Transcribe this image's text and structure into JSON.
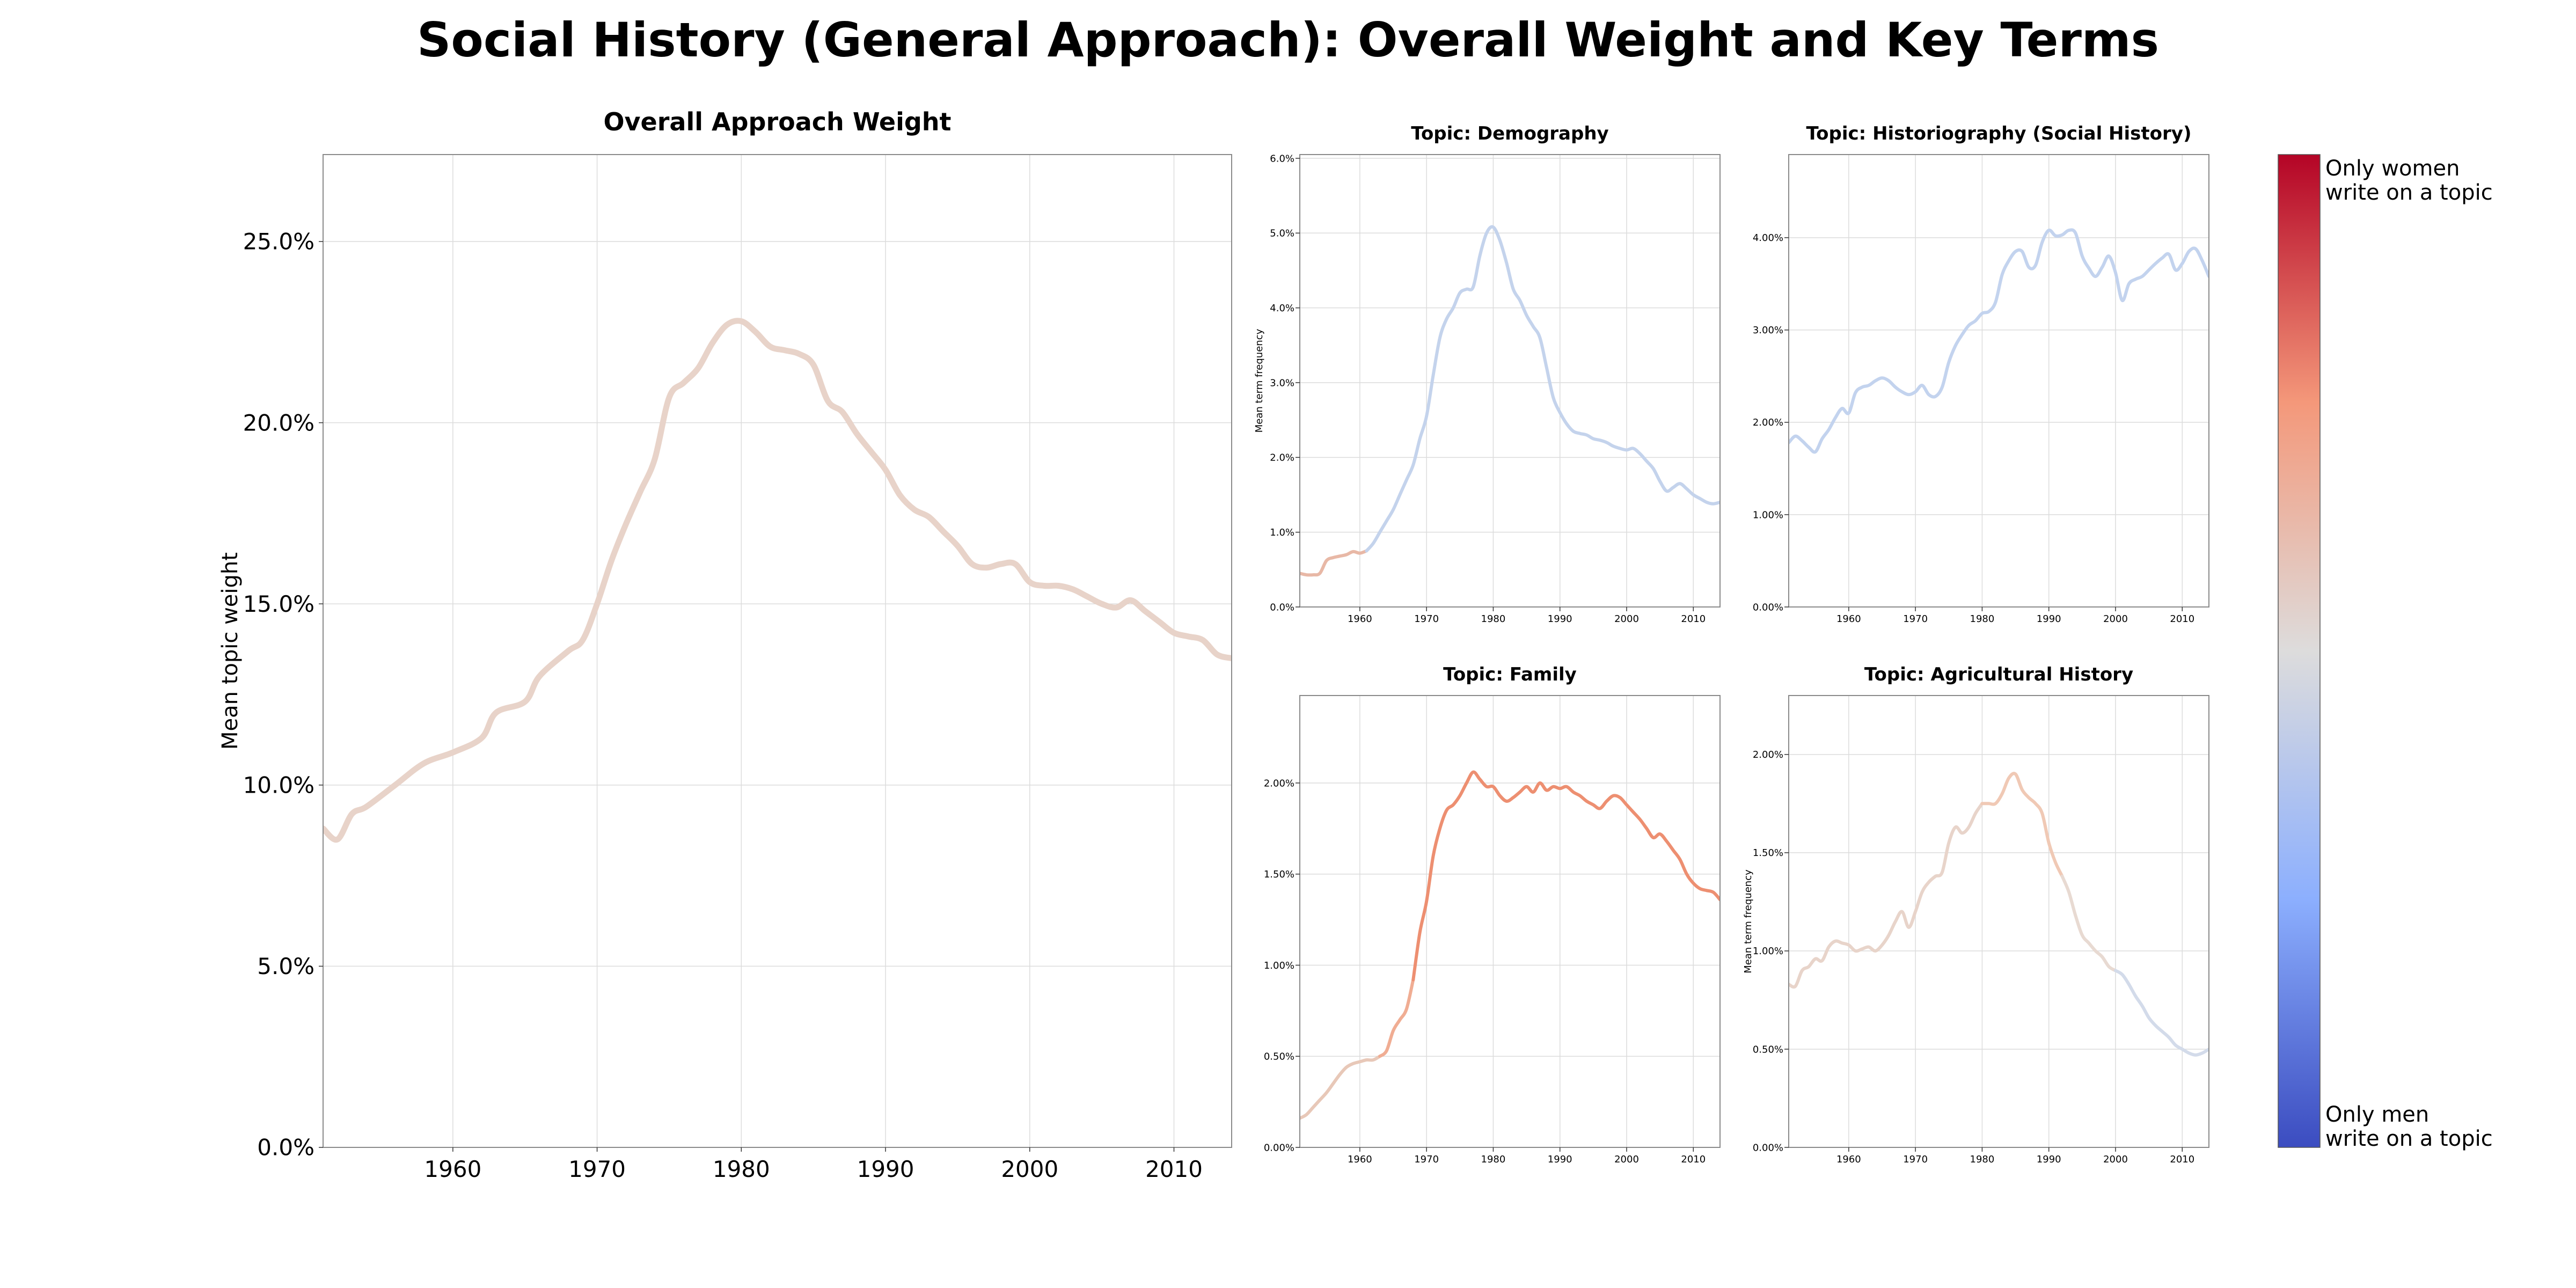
{
  "figure": {
    "title": "Social History (General Approach): Overall Weight and Key Terms",
    "colorbar": {
      "top_label_line1": "Only women",
      "top_label_line2": "write on a topic",
      "bottom_label_line1": "Only men",
      "bottom_label_line2": "write on a topic"
    }
  },
  "chart_data": [
    {
      "id": "main",
      "type": "line",
      "title": "Overall Approach Weight",
      "xlabel": "",
      "ylabel": "Mean topic weight",
      "xlim": [
        1951,
        2014
      ],
      "ylim": [
        0,
        0.274
      ],
      "xticks": [
        1960,
        1970,
        1980,
        1990,
        2000,
        2010
      ],
      "yticks": [
        0,
        0.05,
        0.1,
        0.15,
        0.2,
        0.25
      ],
      "ytick_labels": [
        "0.0%",
        "5.0%",
        "10.0%",
        "15.0%",
        "20.0%",
        "25.0%"
      ],
      "grid": true,
      "series": [
        {
          "color": "#e8d3c9",
          "x": [
            1951,
            1952,
            1953,
            1954,
            1956,
            1958,
            1960,
            1962,
            1963,
            1965,
            1966,
            1968,
            1969,
            1970,
            1971,
            1972,
            1973,
            1974,
            1975,
            1976,
            1977,
            1978,
            1979,
            1980,
            1981,
            1982,
            1983,
            1984,
            1985,
            1986,
            1987,
            1988,
            1989,
            1990,
            1991,
            1992,
            1993,
            1994,
            1995,
            1996,
            1997,
            1998,
            1999,
            2000,
            2001,
            2002,
            2003,
            2004,
            2005,
            2006,
            2007,
            2008,
            2009,
            2010,
            2011,
            2012,
            2013,
            2014
          ],
          "y": [
            0.088,
            0.085,
            0.092,
            0.094,
            0.1,
            0.106,
            0.109,
            0.113,
            0.12,
            0.123,
            0.13,
            0.137,
            0.14,
            0.15,
            0.162,
            0.172,
            0.181,
            0.19,
            0.207,
            0.211,
            0.215,
            0.222,
            0.227,
            0.228,
            0.225,
            0.221,
            0.22,
            0.219,
            0.216,
            0.206,
            0.203,
            0.197,
            0.192,
            0.187,
            0.18,
            0.176,
            0.174,
            0.17,
            0.166,
            0.161,
            0.16,
            0.161,
            0.161,
            0.156,
            0.155,
            0.155,
            0.154,
            0.152,
            0.15,
            0.149,
            0.151,
            0.148,
            0.145,
            0.142,
            0.141,
            0.14,
            0.136,
            0.135
          ]
        }
      ]
    },
    {
      "id": "demography",
      "type": "line",
      "title": "Topic: Demography",
      "xlabel": "",
      "ylabel": "Mean term frequency",
      "xlim": [
        1951,
        2014
      ],
      "ylim": [
        0,
        0.0605
      ],
      "xticks": [
        1960,
        1970,
        1980,
        1990,
        2000,
        2010
      ],
      "yticks": [
        0,
        0.01,
        0.02,
        0.03,
        0.04,
        0.05,
        0.06
      ],
      "ytick_labels": [
        "0.0%",
        "1.0%",
        "2.0%",
        "3.0%",
        "4.0%",
        "5.0%",
        "6.0%"
      ],
      "grid": true,
      "series": [
        {
          "colors_by_segment": [
            [
              "#e8b8a6",
              1951,
              1961
            ],
            [
              "#c4d3ec",
              1961,
              2014
            ]
          ],
          "x": [
            1951,
            1952,
            1953,
            1954,
            1955,
            1956,
            1957,
            1958,
            1959,
            1960,
            1961,
            1962,
            1963,
            1964,
            1965,
            1966,
            1967,
            1968,
            1969,
            1970,
            1971,
            1972,
            1973,
            1974,
            1975,
            1976,
            1977,
            1978,
            1979,
            1980,
            1981,
            1982,
            1983,
            1984,
            1985,
            1986,
            1987,
            1988,
            1989,
            1990,
            1991,
            1992,
            1993,
            1994,
            1995,
            1996,
            1997,
            1998,
            1999,
            2000,
            2001,
            2002,
            2003,
            2004,
            2005,
            2006,
            2007,
            2008,
            2009,
            2010,
            2011,
            2012,
            2013,
            2014
          ],
          "y": [
            0.0045,
            0.0043,
            0.0043,
            0.0045,
            0.0062,
            0.0066,
            0.0068,
            0.007,
            0.0074,
            0.0072,
            0.0075,
            0.0085,
            0.01,
            0.0115,
            0.013,
            0.015,
            0.017,
            0.019,
            0.0225,
            0.0255,
            0.031,
            0.036,
            0.0385,
            0.04,
            0.042,
            0.0425,
            0.0428,
            0.047,
            0.05,
            0.0508,
            0.049,
            0.046,
            0.0425,
            0.041,
            0.039,
            0.0375,
            0.036,
            0.032,
            0.028,
            0.026,
            0.0245,
            0.0235,
            0.0232,
            0.023,
            0.0225,
            0.0223,
            0.022,
            0.0215,
            0.0212,
            0.021,
            0.0212,
            0.0205,
            0.0195,
            0.0185,
            0.0168,
            0.0155,
            0.016,
            0.0165,
            0.0158,
            0.015,
            0.0145,
            0.014,
            0.0138,
            0.014
          ]
        }
      ]
    },
    {
      "id": "historiography",
      "type": "line",
      "title": "Topic: Historiography (Social History)",
      "xlabel": "",
      "ylabel": "",
      "xlim": [
        1951,
        2014
      ],
      "ylim": [
        0,
        0.049
      ],
      "xticks": [
        1960,
        1970,
        1980,
        1990,
        2000,
        2010
      ],
      "yticks": [
        0,
        0.01,
        0.02,
        0.03,
        0.04
      ],
      "ytick_labels": [
        "0.00%",
        "1.00%",
        "2.00%",
        "3.00%",
        "4.00%"
      ],
      "grid": true,
      "series": [
        {
          "color": "#c3d3ee",
          "x": [
            1951,
            1952,
            1953,
            1954,
            1955,
            1956,
            1957,
            1958,
            1959,
            1960,
            1961,
            1962,
            1963,
            1964,
            1965,
            1966,
            1967,
            1968,
            1969,
            1970,
            1971,
            1972,
            1973,
            1974,
            1975,
            1976,
            1977,
            1978,
            1979,
            1980,
            1981,
            1982,
            1983,
            1984,
            1985,
            1986,
            1987,
            1988,
            1989,
            1990,
            1991,
            1992,
            1993,
            1994,
            1995,
            1996,
            1997,
            1998,
            1999,
            2000,
            2001,
            2002,
            2003,
            2004,
            2005,
            2006,
            2007,
            2008,
            2009,
            2010,
            2011,
            2012,
            2013,
            2014
          ],
          "y": [
            0.0178,
            0.0185,
            0.018,
            0.0173,
            0.0168,
            0.0182,
            0.0192,
            0.0205,
            0.0215,
            0.021,
            0.0232,
            0.0238,
            0.024,
            0.0245,
            0.0248,
            0.0245,
            0.0238,
            0.0233,
            0.023,
            0.0233,
            0.024,
            0.023,
            0.0228,
            0.0238,
            0.0265,
            0.0283,
            0.0295,
            0.0305,
            0.031,
            0.0318,
            0.032,
            0.033,
            0.036,
            0.0375,
            0.0385,
            0.0385,
            0.0368,
            0.037,
            0.0395,
            0.0408,
            0.0402,
            0.0403,
            0.0408,
            0.0405,
            0.038,
            0.0367,
            0.0358,
            0.0368,
            0.038,
            0.0362,
            0.0332,
            0.035,
            0.0355,
            0.0358,
            0.0365,
            0.0372,
            0.0378,
            0.0382,
            0.0365,
            0.0372,
            0.0385,
            0.0388,
            0.0375,
            0.0358
          ]
        }
      ]
    },
    {
      "id": "family",
      "type": "line",
      "title": "Topic: Family",
      "xlabel": "",
      "ylabel": "",
      "xlim": [
        1951,
        2014
      ],
      "ylim": [
        0,
        0.0248
      ],
      "xticks": [
        1960,
        1970,
        1980,
        1990,
        2000,
        2010
      ],
      "yticks": [
        0,
        0.005,
        0.01,
        0.015,
        0.02
      ],
      "ytick_labels": [
        "0.00%",
        "0.50%",
        "1.00%",
        "1.50%",
        "2.00%"
      ],
      "grid": true,
      "series": [
        {
          "colors_by_segment": [
            [
              "#e8c8b8",
              1951,
              1963
            ],
            [
              "#f0ad93",
              1963,
              1968
            ],
            [
              "#ed8f71",
              1968,
              2014
            ]
          ],
          "x": [
            1951,
            1952,
            1953,
            1954,
            1955,
            1956,
            1957,
            1958,
            1959,
            1960,
            1961,
            1962,
            1963,
            1964,
            1965,
            1966,
            1967,
            1968,
            1969,
            1970,
            1971,
            1972,
            1973,
            1974,
            1975,
            1976,
            1977,
            1978,
            1979,
            1980,
            1981,
            1982,
            1983,
            1984,
            1985,
            1986,
            1987,
            1988,
            1989,
            1990,
            1991,
            1992,
            1993,
            1994,
            1995,
            1996,
            1997,
            1998,
            1999,
            2000,
            2001,
            2002,
            2003,
            2004,
            2005,
            2006,
            2007,
            2008,
            2009,
            2010,
            2011,
            2012,
            2013,
            2014
          ],
          "y": [
            0.0016,
            0.0018,
            0.0022,
            0.0026,
            0.003,
            0.0035,
            0.004,
            0.0044,
            0.0046,
            0.0047,
            0.0048,
            0.0048,
            0.005,
            0.0053,
            0.0064,
            0.007,
            0.0076,
            0.0092,
            0.0118,
            0.0135,
            0.016,
            0.0175,
            0.0185,
            0.0188,
            0.0193,
            0.02,
            0.0206,
            0.0202,
            0.0198,
            0.0198,
            0.0193,
            0.019,
            0.0192,
            0.0195,
            0.0198,
            0.0195,
            0.02,
            0.0196,
            0.0198,
            0.0197,
            0.0198,
            0.0195,
            0.0193,
            0.019,
            0.0188,
            0.0186,
            0.019,
            0.0193,
            0.0192,
            0.0188,
            0.0184,
            0.018,
            0.0175,
            0.017,
            0.0172,
            0.0168,
            0.0163,
            0.0158,
            0.015,
            0.0145,
            0.0142,
            0.0141,
            0.014,
            0.0136
          ]
        }
      ]
    },
    {
      "id": "agricultural",
      "type": "line",
      "title": "Topic: Agricultural History",
      "xlabel": "",
      "ylabel": "Mean term frequency",
      "xlim": [
        1951,
        2014
      ],
      "ylim": [
        0,
        0.023
      ],
      "xticks": [
        1960,
        1970,
        1980,
        1990,
        2000,
        2010
      ],
      "yticks": [
        0,
        0.005,
        0.01,
        0.015,
        0.02
      ],
      "ytick_labels": [
        "0.00%",
        "0.50%",
        "1.00%",
        "1.50%",
        "2.00%"
      ],
      "grid": true,
      "series": [
        {
          "colors_by_segment": [
            [
              "#e8d4ca",
              1951,
              1980
            ],
            [
              "#f0c9b5",
              1980,
              1992
            ],
            [
              "#e8dad2",
              1992,
              2000
            ],
            [
              "#d3dbea",
              2000,
              2014
            ]
          ],
          "x": [
            1951,
            1952,
            1953,
            1954,
            1955,
            1956,
            1957,
            1958,
            1959,
            1960,
            1961,
            1962,
            1963,
            1964,
            1965,
            1966,
            1967,
            1968,
            1969,
            1970,
            1971,
            1972,
            1973,
            1974,
            1975,
            1976,
            1977,
            1978,
            1979,
            1980,
            1981,
            1982,
            1983,
            1984,
            1985,
            1986,
            1987,
            1988,
            1989,
            1990,
            1991,
            1992,
            1993,
            1994,
            1995,
            1996,
            1997,
            1998,
            1999,
            2000,
            2001,
            2002,
            2003,
            2004,
            2005,
            2006,
            2007,
            2008,
            2009,
            2010,
            2011,
            2012,
            2013,
            2014
          ],
          "y": [
            0.0083,
            0.0082,
            0.009,
            0.0092,
            0.0096,
            0.0095,
            0.0102,
            0.0105,
            0.0104,
            0.0103,
            0.01,
            0.0101,
            0.0102,
            0.01,
            0.0103,
            0.0108,
            0.0115,
            0.012,
            0.0112,
            0.012,
            0.013,
            0.0135,
            0.0138,
            0.014,
            0.0155,
            0.0163,
            0.016,
            0.0163,
            0.017,
            0.0175,
            0.0175,
            0.0175,
            0.018,
            0.0188,
            0.019,
            0.0182,
            0.0178,
            0.0175,
            0.017,
            0.0155,
            0.0145,
            0.0138,
            0.013,
            0.0118,
            0.0108,
            0.0104,
            0.01,
            0.0097,
            0.0092,
            0.009,
            0.0088,
            0.0083,
            0.0077,
            0.0072,
            0.0066,
            0.0062,
            0.0059,
            0.0056,
            0.0052,
            0.005,
            0.0048,
            0.0047,
            0.0048,
            0.005
          ]
        }
      ]
    }
  ]
}
